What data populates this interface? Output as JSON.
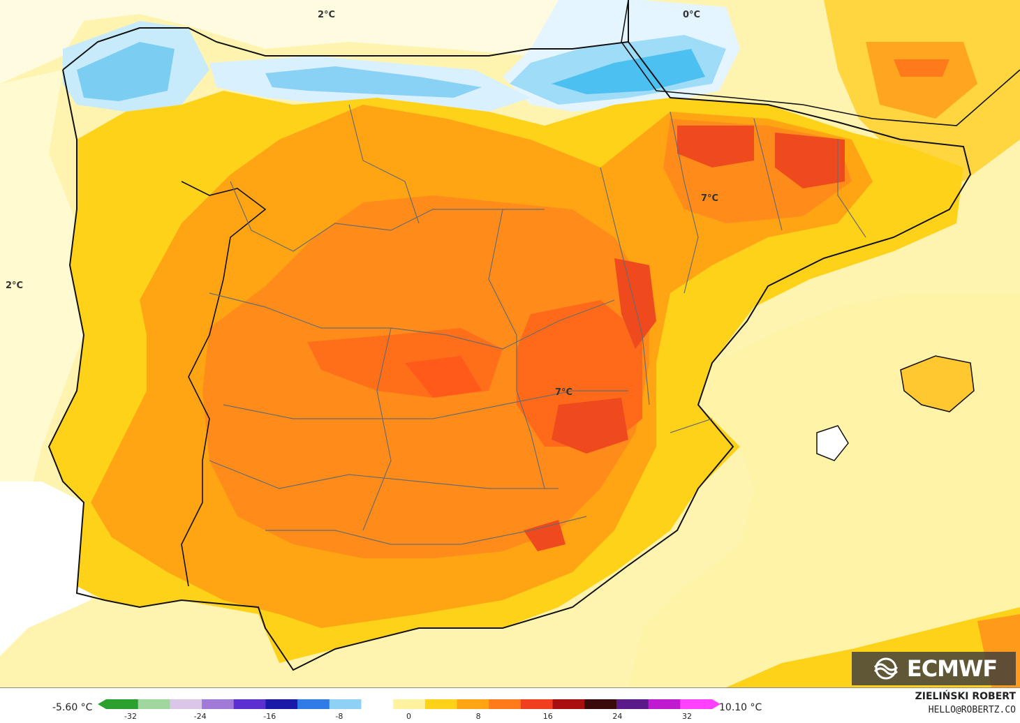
{
  "map": {
    "labels": [
      {
        "id": "north-2c",
        "text": "2°C"
      },
      {
        "id": "north-0c",
        "text": "0°C"
      },
      {
        "id": "west-2c",
        "text": "2°C"
      },
      {
        "id": "ebro-7c",
        "text": "7°C"
      },
      {
        "id": "center-7c",
        "text": "7°C"
      }
    ]
  },
  "legend": {
    "min_label": "-5.60 °C",
    "max_label": "10.10 °C",
    "ticks": [
      "-32",
      "-24",
      "-16",
      "-8",
      "0",
      "8",
      "16",
      "24",
      "32"
    ],
    "colors": [
      "#2ca02c",
      "#9fd79f",
      "#d9c6e8",
      "#a07ad6",
      "#5b2fd0",
      "#1a1aa8",
      "#2f7ce6",
      "#8fd0f5",
      "#ffffff",
      "#fff3a0",
      "#ffd21a",
      "#ffa514",
      "#ff7a1a",
      "#ef3f1e",
      "#a81010",
      "#3a0a0a",
      "#5a1a8a",
      "#c01ad0",
      "#ff40ff"
    ]
  },
  "branding": {
    "logo": "ECMWF",
    "logo_icon": "ecmwf-logo-icon",
    "author": "ZIELIŃSKI ROBERT",
    "email": "HELLO@ROBERTZ.CO"
  }
}
